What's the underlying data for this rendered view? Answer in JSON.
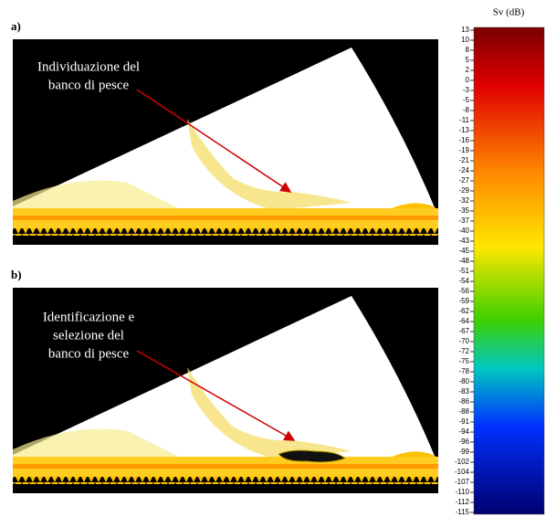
{
  "panels": [
    {
      "label": "a)",
      "annotation": [
        "Individuazione del",
        "banco di pesce"
      ]
    },
    {
      "label": "b)",
      "annotation": [
        "Identificazione e",
        "selezione del",
        "banco di pesce"
      ]
    }
  ],
  "colorbar": {
    "title": "Sv (dB)",
    "ticks": [
      13,
      10,
      8,
      5,
      2,
      0,
      -3,
      -5,
      -8,
      -11,
      -13,
      -16,
      -19,
      -21,
      -24,
      -27,
      -29,
      -32,
      -35,
      -37,
      -40,
      -43,
      -45,
      -48,
      -51,
      -54,
      -56,
      -59,
      -62,
      -64,
      -67,
      -70,
      -72,
      -75,
      -78,
      -80,
      -83,
      -86,
      -88,
      -91,
      -94,
      -96,
      -99,
      -102,
      -104,
      -107,
      -110,
      -112,
      -115
    ]
  }
}
